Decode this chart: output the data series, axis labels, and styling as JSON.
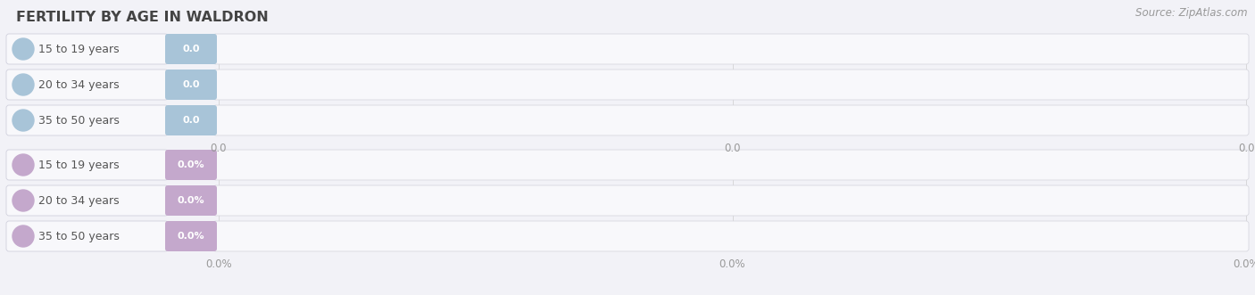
{
  "title": "FERTILITY BY AGE IN WALDRON",
  "source_text": "Source: ZipAtlas.com",
  "background_color": "#f2f2f7",
  "top_section": {
    "categories": [
      "15 to 19 years",
      "20 to 34 years",
      "35 to 50 years"
    ],
    "values": [
      0.0,
      0.0,
      0.0
    ],
    "bar_color": "#a8c4d8",
    "value_labels": [
      "0.0",
      "0.0",
      "0.0"
    ],
    "tick_values": [
      "0.0",
      "0.0",
      "0.0"
    ]
  },
  "bottom_section": {
    "categories": [
      "15 to 19 years",
      "20 to 34 years",
      "35 to 50 years"
    ],
    "values": [
      0.0,
      0.0,
      0.0
    ],
    "bar_color": "#c4a8cc",
    "value_labels": [
      "0.0%",
      "0.0%",
      "0.0%"
    ],
    "tick_values": [
      "0.0%",
      "0.0%",
      "0.0%"
    ]
  },
  "title_fontsize": 11.5,
  "source_fontsize": 8.5,
  "label_fontsize": 9,
  "value_fontsize": 8,
  "tick_fontsize": 8.5
}
